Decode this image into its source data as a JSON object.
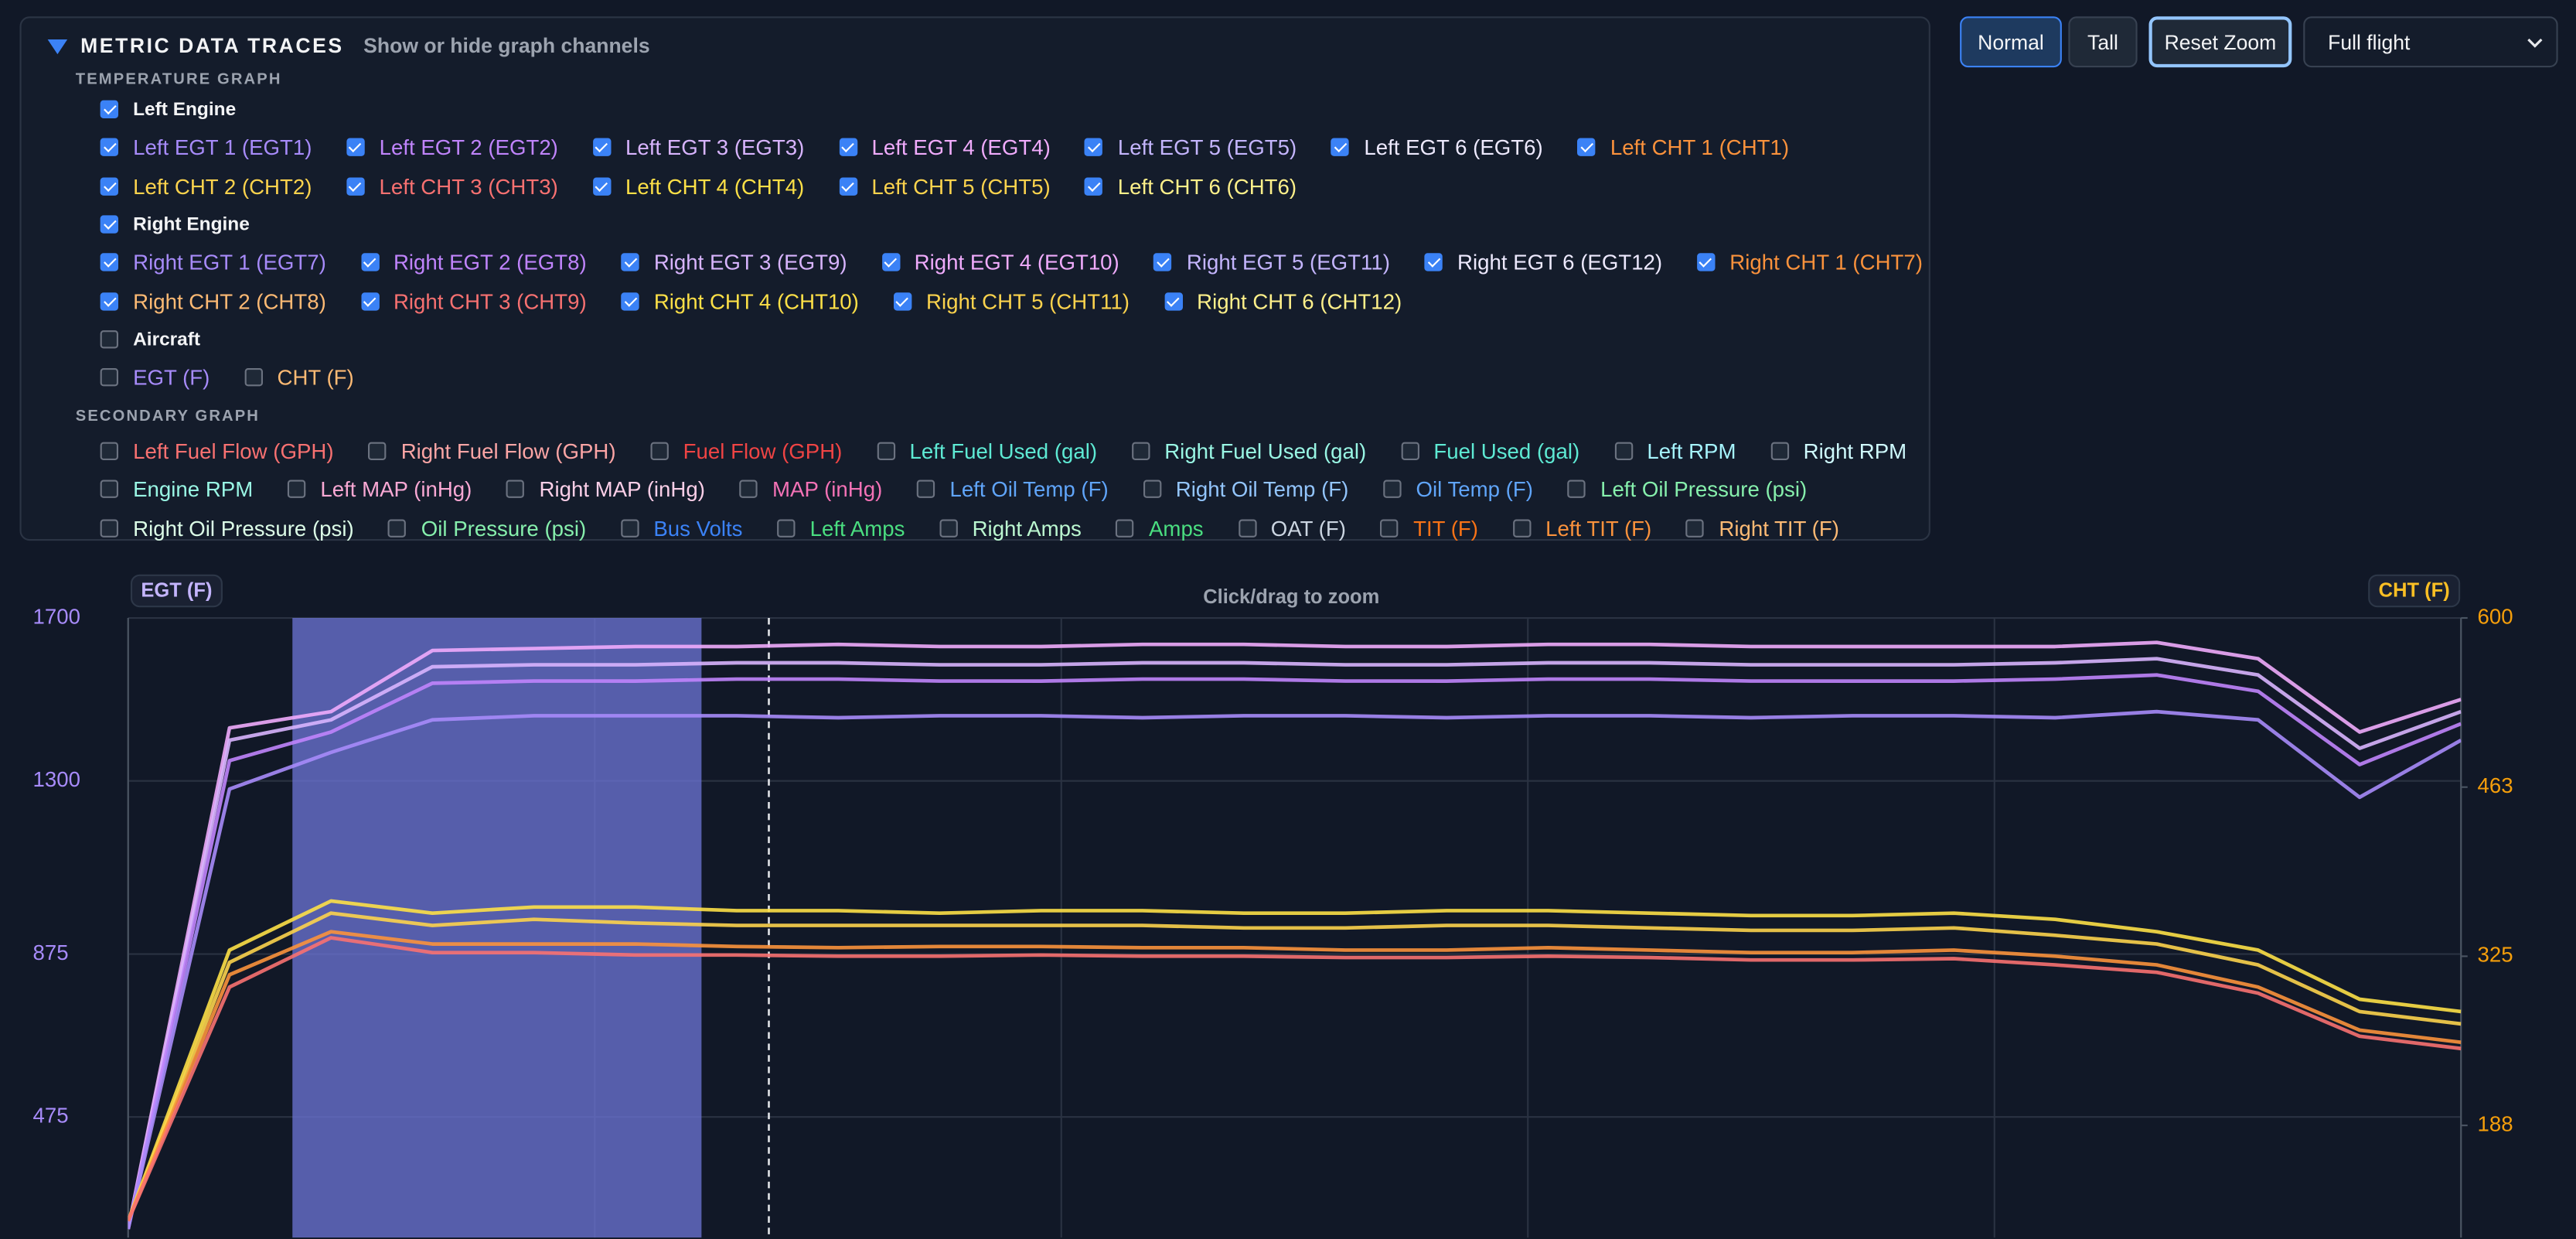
{
  "controls": {
    "buttons": [
      {
        "label": "Normal",
        "active": true
      },
      {
        "label": "Tall",
        "active": false
      },
      {
        "label": "Reset Zoom",
        "active": false,
        "focused": true
      }
    ],
    "select": "Full flight"
  },
  "panel": {
    "title": "METRIC DATA TRACES",
    "subtitle": "Show or hide graph channels",
    "groups": [
      {
        "heading": "TEMPERATURE GRAPH",
        "sections": [
          {
            "label": "Left Engine",
            "checked": true,
            "items": [
              {
                "label": "Left EGT 1 (EGT1)",
                "checked": true,
                "color": "#a78bfa"
              },
              {
                "label": "Left EGT 2 (EGT2)",
                "checked": true,
                "color": "#c084fc"
              },
              {
                "label": "Left EGT 3 (EGT3)",
                "checked": true,
                "color": "#d8b4fe"
              },
              {
                "label": "Left EGT 4 (EGT4)",
                "checked": true,
                "color": "#f0abfc"
              },
              {
                "label": "Left EGT 5 (EGT5)",
                "checked": true,
                "color": "#c4b5fd"
              },
              {
                "label": "Left EGT 6 (EGT6)",
                "checked": true,
                "color": "#ede9fe"
              },
              {
                "label": "Left CHT 1 (CHT1)",
                "checked": true,
                "color": "#fb923c"
              },
              {
                "label": "Left CHT 2 (CHT2)",
                "checked": true,
                "color": "#fcd34d"
              },
              {
                "label": "Left CHT 3 (CHT3)",
                "checked": true,
                "color": "#f87171"
              },
              {
                "label": "Left CHT 4 (CHT4)",
                "checked": true,
                "color": "#fde047"
              },
              {
                "label": "Left CHT 5 (CHT5)",
                "checked": true,
                "color": "#fcd34d"
              },
              {
                "label": "Left CHT 6 (CHT6)",
                "checked": true,
                "color": "#fef08a"
              }
            ]
          },
          {
            "label": "Right Engine",
            "checked": true,
            "items": [
              {
                "label": "Right EGT 1 (EGT7)",
                "checked": true,
                "color": "#a78bfa"
              },
              {
                "label": "Right EGT 2 (EGT8)",
                "checked": true,
                "color": "#c084fc"
              },
              {
                "label": "Right EGT 3 (EGT9)",
                "checked": true,
                "color": "#d8b4fe"
              },
              {
                "label": "Right EGT 4 (EGT10)",
                "checked": true,
                "color": "#f0abfc"
              },
              {
                "label": "Right EGT 5 (EGT11)",
                "checked": true,
                "color": "#c4b5fd"
              },
              {
                "label": "Right EGT 6 (EGT12)",
                "checked": true,
                "color": "#ede9fe"
              },
              {
                "label": "Right CHT 1 (CHT7)",
                "checked": true,
                "color": "#fb923c"
              },
              {
                "label": "Right CHT 2 (CHT8)",
                "checked": true,
                "color": "#fdba74"
              },
              {
                "label": "Right CHT 3 (CHT9)",
                "checked": true,
                "color": "#f87171"
              },
              {
                "label": "Right CHT 4 (CHT10)",
                "checked": true,
                "color": "#fde047"
              },
              {
                "label": "Right CHT 5 (CHT11)",
                "checked": true,
                "color": "#fcd34d"
              },
              {
                "label": "Right CHT 6 (CHT12)",
                "checked": true,
                "color": "#fef08a"
              }
            ]
          },
          {
            "label": "Aircraft",
            "checked": false,
            "items": [
              {
                "label": "EGT (F)",
                "checked": false,
                "color": "#a78bfa"
              },
              {
                "label": "CHT (F)",
                "checked": false,
                "color": "#fdba74"
              }
            ]
          }
        ]
      },
      {
        "heading": "SECONDARY GRAPH",
        "items": [
          {
            "label": "Left Fuel Flow (GPH)",
            "checked": false,
            "color": "#f87171"
          },
          {
            "label": "Right Fuel Flow (GPH)",
            "checked": false,
            "color": "#fca5a5"
          },
          {
            "label": "Fuel Flow (GPH)",
            "checked": false,
            "color": "#ef4444"
          },
          {
            "label": "Left Fuel Used (gal)",
            "checked": false,
            "color": "#5eead4"
          },
          {
            "label": "Right Fuel Used (gal)",
            "checked": false,
            "color": "#99f6e4"
          },
          {
            "label": "Fuel Used (gal)",
            "checked": false,
            "color": "#5eead4"
          },
          {
            "label": "Left RPM",
            "checked": false,
            "color": "#a5f3fc"
          },
          {
            "label": "Right RPM",
            "checked": false,
            "color": "#cffafe"
          },
          {
            "label": "Engine RPM",
            "checked": false,
            "color": "#99f6e4"
          },
          {
            "label": "Left MAP (inHg)",
            "checked": false,
            "color": "#f9a8d4"
          },
          {
            "label": "Right MAP (inHg)",
            "checked": false,
            "color": "#fbcfe8"
          },
          {
            "label": "MAP (inHg)",
            "checked": false,
            "color": "#f472b6"
          },
          {
            "label": "Left Oil Temp (F)",
            "checked": false,
            "color": "#60a5fa"
          },
          {
            "label": "Right Oil Temp (F)",
            "checked": false,
            "color": "#93c5fd"
          },
          {
            "label": "Oil Temp (F)",
            "checked": false,
            "color": "#60a5fa"
          },
          {
            "label": "Left Oil Pressure (psi)",
            "checked": false,
            "color": "#86efac"
          },
          {
            "label": "Right Oil Pressure (psi)",
            "checked": false,
            "color": "#dcfce7"
          },
          {
            "label": "Oil Pressure (psi)",
            "checked": false,
            "color": "#86efac"
          },
          {
            "label": "Bus Volts",
            "checked": false,
            "color": "#3b82f6"
          },
          {
            "label": "Left Amps",
            "checked": false,
            "color": "#4ade80"
          },
          {
            "label": "Right Amps",
            "checked": false,
            "color": "#bbf7d0"
          },
          {
            "label": "Amps",
            "checked": false,
            "color": "#4ade80"
          },
          {
            "label": "OAT (F)",
            "checked": false,
            "color": "#cbd5e1"
          },
          {
            "label": "TIT (F)",
            "checked": false,
            "color": "#f97316"
          },
          {
            "label": "Left TIT (F)",
            "checked": false,
            "color": "#fb923c"
          },
          {
            "label": "Right TIT (F)",
            "checked": false,
            "color": "#fdba74"
          }
        ]
      }
    ]
  },
  "chart_data": {
    "type": "line",
    "hint": "Click/drag to zoom",
    "ylabel": "EGT (F)",
    "y2label": "CHT (F)",
    "ylim": [
      175,
      1700
    ],
    "yticks": [
      1700,
      1300,
      875,
      475
    ],
    "y2lim": [
      95,
      600
    ],
    "y2ticks": [
      600,
      {
        "value": 462.5,
        "label": "463"
      },
      325,
      {
        "value": 187.5,
        "label": "188"
      }
    ],
    "ytick_color": "#a78bfa",
    "y2tick_color": "#f59e0b",
    "grid": true,
    "series": [
      {
        "color": "#f0abfc",
        "values": [
          200,
          1430,
          1470,
          1620,
          1625,
          1630,
          1630,
          1635,
          1630,
          1630,
          1635,
          1635,
          1630,
          1630,
          1635,
          1635,
          1630,
          1630,
          1630,
          1630,
          1640,
          1600,
          1420,
          1500
        ]
      },
      {
        "color": "#d8b4fe",
        "values": [
          200,
          1400,
          1450,
          1580,
          1585,
          1585,
          1590,
          1590,
          1585,
          1585,
          1590,
          1590,
          1585,
          1585,
          1590,
          1590,
          1585,
          1585,
          1585,
          1590,
          1600,
          1560,
          1380,
          1470
        ]
      },
      {
        "color": "#c084fc",
        "values": [
          200,
          1350,
          1420,
          1540,
          1545,
          1545,
          1550,
          1550,
          1545,
          1545,
          1550,
          1550,
          1545,
          1545,
          1550,
          1550,
          1545,
          1545,
          1545,
          1550,
          1560,
          1520,
          1340,
          1440
        ]
      },
      {
        "color": "#a78bfa",
        "values": [
          200,
          1280,
          1370,
          1450,
          1460,
          1460,
          1460,
          1455,
          1460,
          1460,
          1455,
          1460,
          1460,
          1455,
          1460,
          1460,
          1455,
          1460,
          1460,
          1455,
          1470,
          1450,
          1260,
          1400
        ]
      },
      {
        "color": "#fde047",
        "axis": "y2",
        "values": [
          110,
          330,
          370,
          360,
          365,
          365,
          362,
          362,
          360,
          362,
          362,
          360,
          360,
          362,
          362,
          360,
          358,
          358,
          360,
          355,
          345,
          330,
          290,
          280
        ]
      },
      {
        "color": "#fcd34d",
        "axis": "y2",
        "values": [
          110,
          320,
          360,
          350,
          355,
          352,
          350,
          350,
          350,
          350,
          350,
          348,
          348,
          350,
          350,
          348,
          346,
          346,
          348,
          342,
          335,
          318,
          280,
          270
        ]
      },
      {
        "color": "#fb923c",
        "axis": "y2",
        "values": [
          110,
          310,
          345,
          335,
          335,
          335,
          333,
          332,
          333,
          333,
          332,
          332,
          330,
          330,
          332,
          330,
          328,
          328,
          330,
          325,
          318,
          300,
          265,
          255
        ]
      },
      {
        "color": "#f87171",
        "axis": "y2",
        "values": [
          110,
          300,
          340,
          328,
          328,
          326,
          326,
          325,
          325,
          326,
          325,
          325,
          324,
          324,
          325,
          324,
          322,
          322,
          323,
          318,
          312,
          295,
          260,
          250
        ]
      }
    ]
  }
}
